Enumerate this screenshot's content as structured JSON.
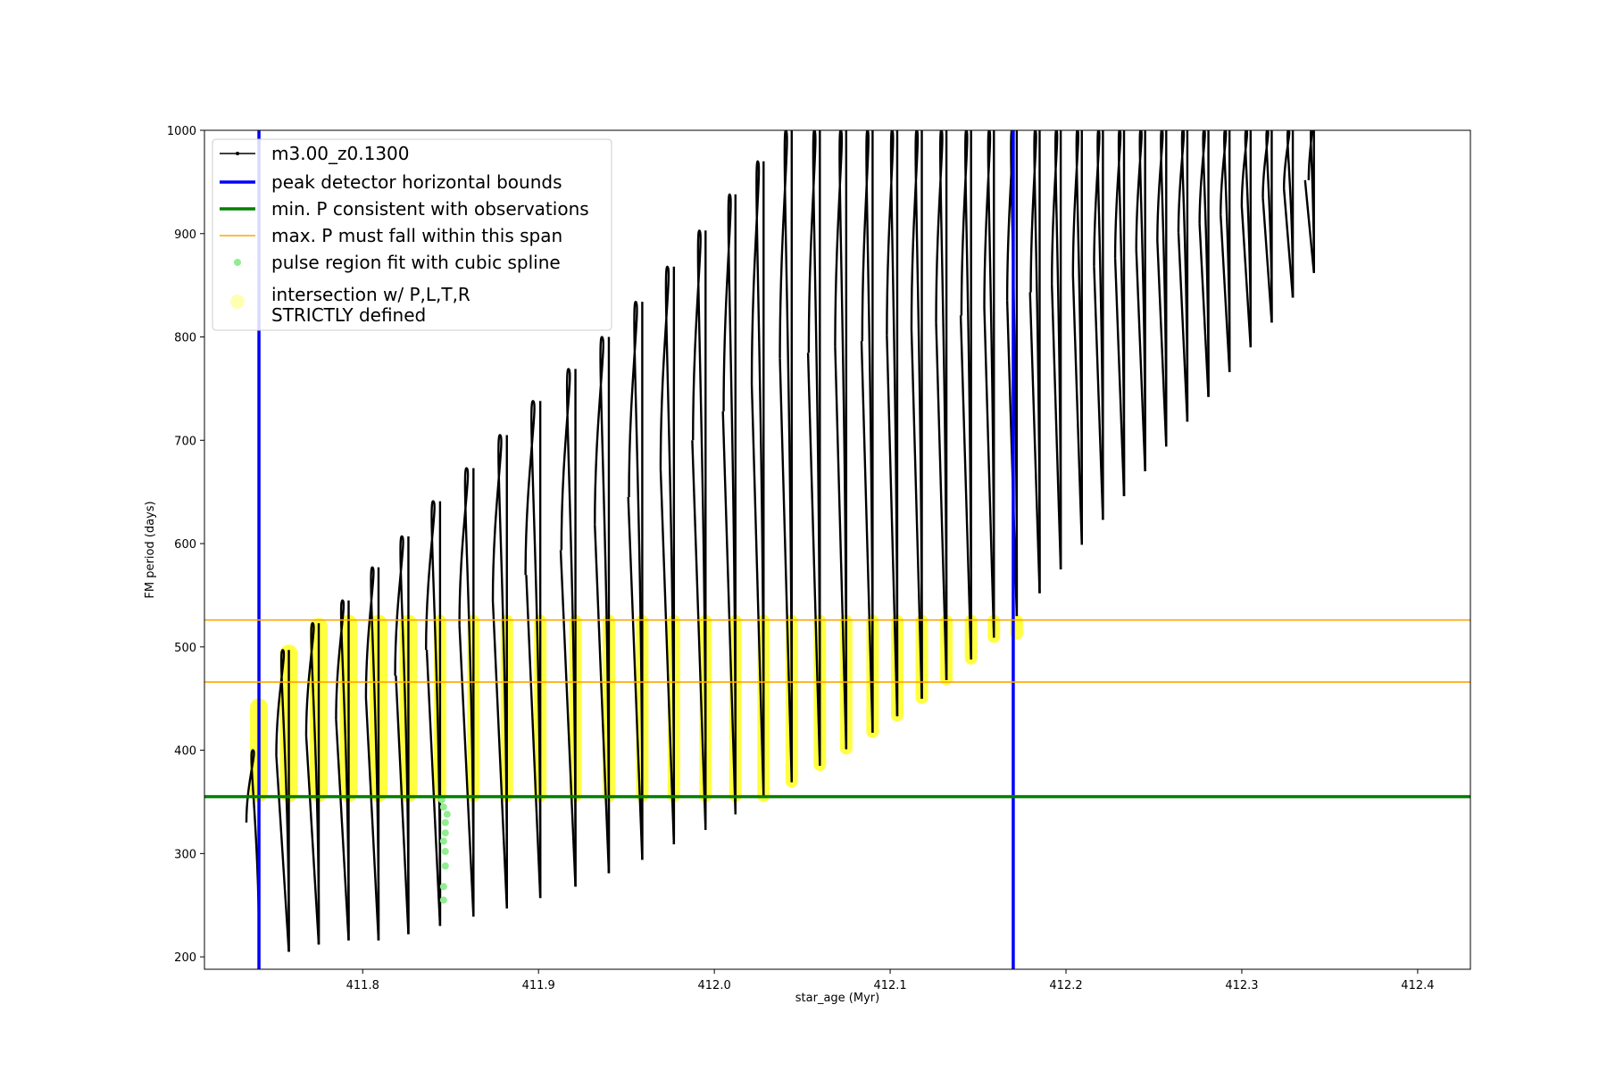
{
  "chart_data": {
    "type": "scatter",
    "xlabel": "star_age (Myr)",
    "ylabel": "FM period (days)",
    "xlim": [
      411.71,
      412.43
    ],
    "ylim": [
      188,
      1000
    ],
    "x_ticks": [
      411.8,
      411.9,
      412.0,
      412.1,
      412.2,
      412.3,
      412.4
    ],
    "x_tick_labels": [
      "411.8",
      "411.9",
      "412.0",
      "412.1",
      "412.2",
      "412.3",
      "412.4"
    ],
    "y_ticks": [
      200,
      300,
      400,
      500,
      600,
      700,
      800,
      900,
      1000
    ],
    "y_tick_labels": [
      "200",
      "300",
      "400",
      "500",
      "600",
      "700",
      "800",
      "900",
      "1000"
    ],
    "grid": false,
    "legend_position": "top-left",
    "legend": [
      {
        "label": "m3.00_z0.1300",
        "style": "line-marker",
        "color": "#000000"
      },
      {
        "label": "peak detector horizontal bounds",
        "style": "line",
        "color": "#0000ff"
      },
      {
        "label": "min. P consistent with observations",
        "style": "line",
        "color": "#008000"
      },
      {
        "label": "max. P must fall within this span",
        "style": "line",
        "color": "#ffa500"
      },
      {
        "label": "pulse region fit with cubic spline",
        "style": "dot",
        "color": "#90ee90"
      },
      {
        "label": "intersection w/ P,L,T,R",
        "label2": "STRICTLY defined",
        "style": "bigdot",
        "color": "#ffff00"
      }
    ],
    "vertical_lines": [
      {
        "x": 411.741,
        "color": "#0000ff"
      },
      {
        "x": 412.17,
        "color": "#0000ff"
      }
    ],
    "horizontal_lines": [
      {
        "y": 355,
        "color": "#008000"
      },
      {
        "y": 466,
        "color": "#ffa500"
      },
      {
        "y": 526,
        "color": "#ffa500"
      }
    ],
    "series": [
      {
        "name": "m3.00_z0.1300",
        "pulses_x": [
          411.741,
          411.758,
          411.775,
          411.792,
          411.809,
          411.826,
          411.844,
          411.863,
          411.882,
          411.901,
          411.921,
          411.94,
          411.959,
          411.977,
          411.995,
          412.012,
          412.028,
          412.044,
          412.06,
          412.075,
          412.09,
          412.104,
          412.118,
          412.132,
          412.146,
          412.159,
          412.172,
          412.185,
          412.197,
          412.209,
          412.221,
          412.233,
          412.245,
          412.257,
          412.269,
          412.281,
          412.293,
          412.305,
          412.317,
          412.329,
          412.341
        ],
        "pulses_min": [
          200,
          205,
          212,
          216,
          216,
          222,
          230,
          239,
          247,
          257,
          268,
          281,
          294,
          309,
          323,
          338,
          354,
          369,
          385,
          401,
          417,
          433,
          450,
          468,
          488,
          509,
          530,
          552,
          575,
          599,
          623,
          646,
          670,
          694,
          718,
          742,
          766,
          790,
          814,
          838,
          862
        ],
        "pulses_max": [
          400,
          497,
          523,
          545,
          577,
          607,
          641,
          673,
          705,
          738,
          769,
          800,
          834,
          868,
          903,
          938,
          970,
          1000,
          1000,
          1000,
          1000,
          1000,
          1000,
          1000,
          1000,
          1000,
          1000,
          1000,
          1000,
          1000,
          1000,
          1000,
          1000,
          1000,
          1000,
          1000,
          1000,
          1000,
          1000,
          1000,
          1000
        ],
        "color": "#000000"
      },
      {
        "name": "pulse region fit with cubic spline",
        "x": [
          411.846,
          411.846,
          411.847,
          411.847,
          411.846,
          411.847,
          411.847,
          411.848,
          411.846,
          411.845
        ],
        "y": [
          255,
          268,
          288,
          302,
          312,
          320,
          330,
          338,
          345,
          352
        ],
        "color": "#90ee90"
      },
      {
        "name": "intersection w/ P,L,T,R STRICTLY defined",
        "x": [
          411.741,
          411.758,
          411.775,
          411.792,
          411.809,
          411.826,
          411.844,
          411.863,
          411.882,
          411.901,
          411.921,
          411.94,
          411.959,
          411.977,
          411.995,
          412.012,
          412.028,
          412.044,
          412.06,
          412.075,
          412.09,
          412.104,
          412.118,
          412.132,
          412.146,
          412.159,
          412.172
        ],
        "y_low": [
          355,
          355,
          355,
          355,
          355,
          355,
          355,
          355,
          355,
          355,
          355,
          355,
          355,
          355,
          355,
          355,
          355,
          369,
          385,
          401,
          417,
          433,
          450,
          468,
          488,
          509,
          512
        ],
        "y_high": [
          445,
          497,
          523,
          526,
          526,
          526,
          526,
          526,
          526,
          526,
          526,
          526,
          526,
          526,
          526,
          526,
          526,
          526,
          526,
          526,
          526,
          526,
          526,
          526,
          526,
          526,
          526
        ],
        "color": "#ffff00"
      }
    ]
  }
}
